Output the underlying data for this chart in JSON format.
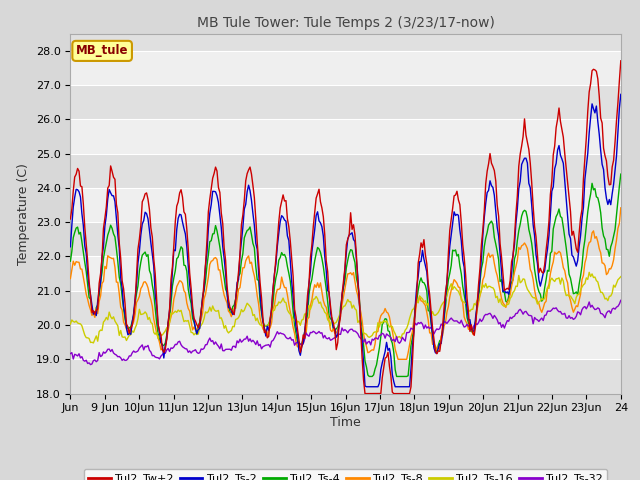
{
  "title": "MB Tule Tower: Tule Temps 2 (3/23/17-now)",
  "xlabel": "Time",
  "ylabel": "Temperature (C)",
  "ylim": [
    18.0,
    28.5
  ],
  "yticks": [
    18.0,
    19.0,
    20.0,
    21.0,
    22.0,
    23.0,
    24.0,
    25.0,
    26.0,
    27.0,
    28.0
  ],
  "xtick_labels": [
    "Jun",
    "9 Jun",
    "10Jun",
    "11Jun",
    "12Jun",
    "13Jun",
    "14Jun",
    "15Jun",
    "16Jun",
    "17Jun",
    "18Jun",
    "19Jun",
    "20Jun",
    "21Jun",
    "22Jun",
    "23Jun",
    "24"
  ],
  "colors": {
    "Tul2_Tw+2": "#cc0000",
    "Tul2_Ts-2": "#0000cc",
    "Tul2_Ts-4": "#00aa00",
    "Tul2_Ts-8": "#ff8800",
    "Tul2_Ts-16": "#cccc00",
    "Tul2_Ts-32": "#8800cc"
  },
  "legend_label": "MB_tule",
  "legend_box_color": "#ffff99",
  "legend_box_border": "#cc9900",
  "legend_text_color": "#880000",
  "bg_color": "#d8d8d8",
  "plot_bg_color": "#e8e8e8",
  "stripe_light": "#efefef",
  "stripe_dark": "#e0e0e0",
  "grid_color": "#ffffff",
  "title_color": "#444444"
}
